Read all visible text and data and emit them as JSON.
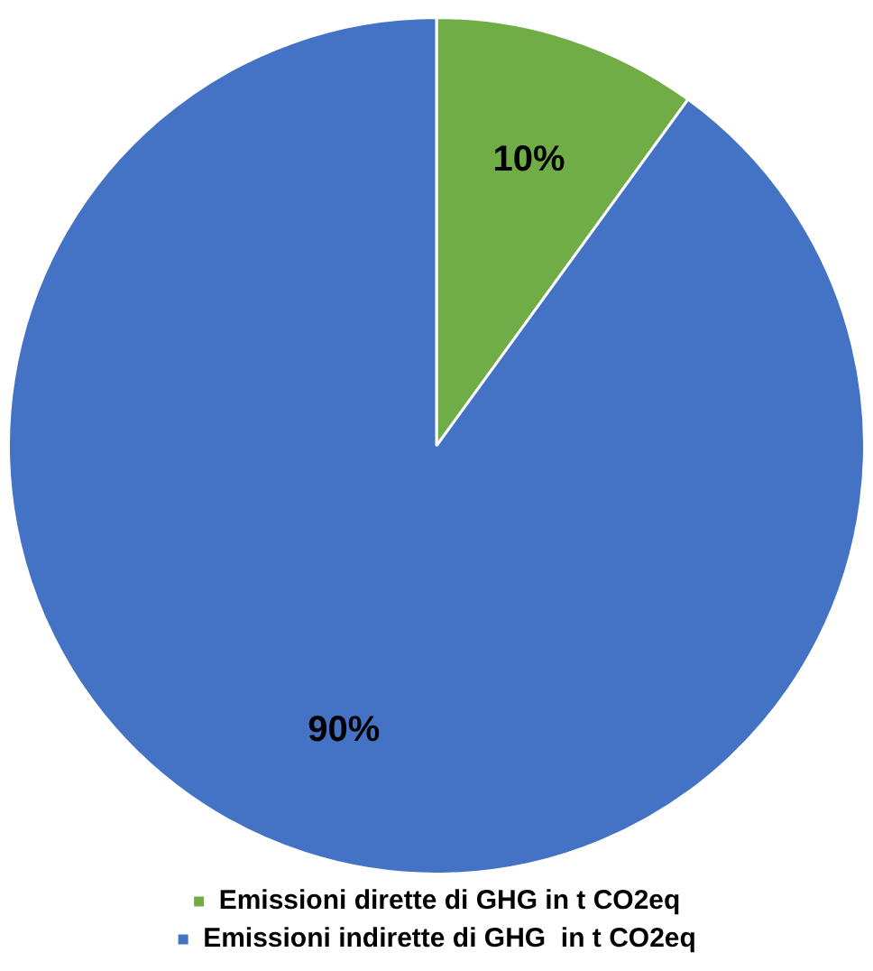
{
  "chart_data": {
    "type": "pie",
    "categories": [
      "Emissioni dirette di GHG in t CO2eq",
      "Emissioni indirette di GHG  in t CO2eq"
    ],
    "values": [
      10,
      90
    ],
    "colors": [
      "#70ad47",
      "#4472c4"
    ],
    "legend": "bottom",
    "value_labels": [
      "10%",
      "90%"
    ]
  }
}
